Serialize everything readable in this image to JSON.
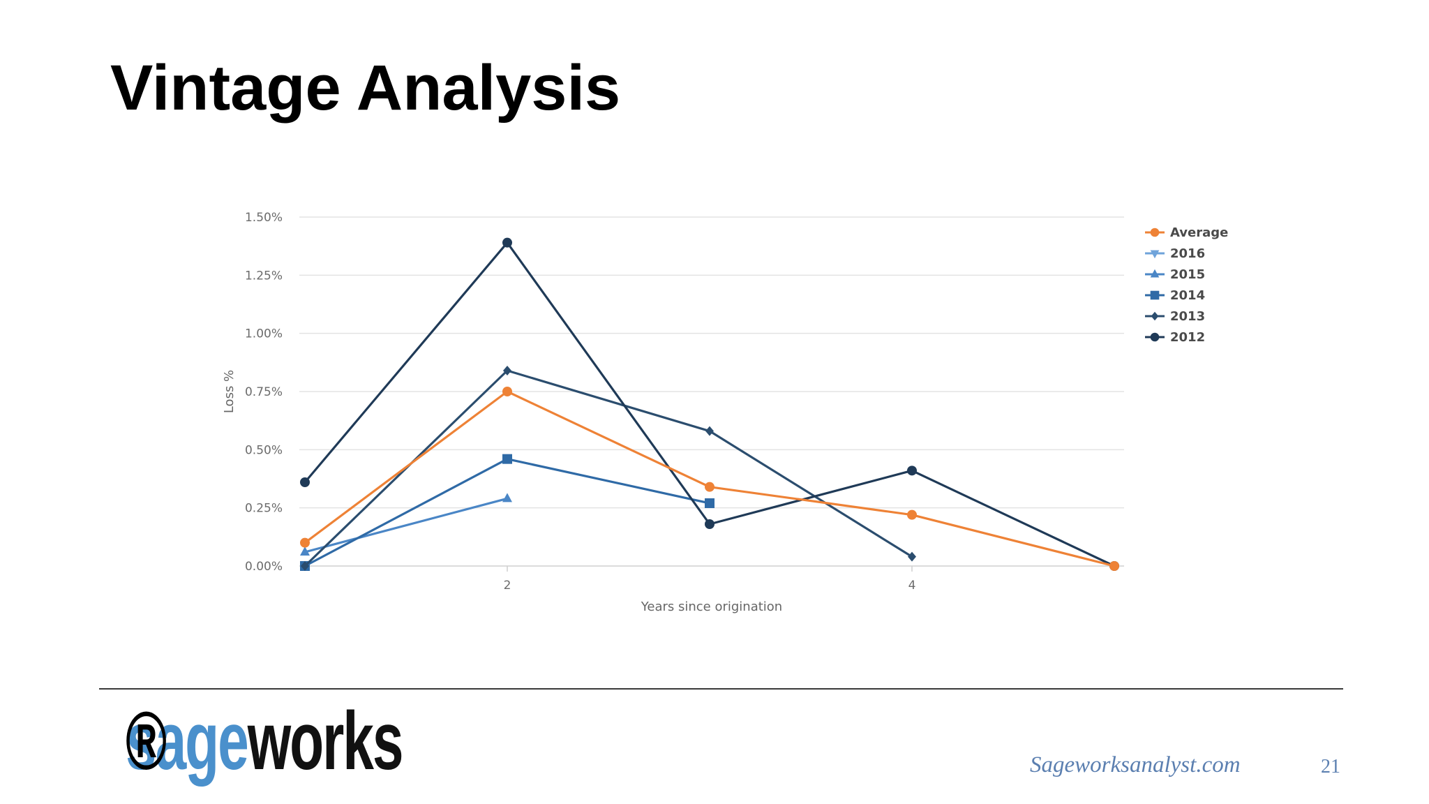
{
  "slide": {
    "title": "Vintage Analysis",
    "footer_url": "Sageworksanalyst.com",
    "page_number": "21",
    "logo": {
      "part1": "sage",
      "part2": "works",
      "registered": "®"
    }
  },
  "colors": {
    "average": "#ee8236",
    "y2016": "#6fa3da",
    "y2015": "#4a86c6",
    "y2014": "#2f6aa6",
    "y2013": "#2b4d6e",
    "y2012": "#1f3a57",
    "grid": "#e3e3e3",
    "logo_blue": "#4a90cc"
  },
  "chart_data": {
    "type": "line",
    "xlabel": "Years since origination",
    "ylabel": "Loss %",
    "xlim": [
      1,
      5
    ],
    "ylim": [
      0,
      1.5
    ],
    "x_ticks": [
      2,
      4
    ],
    "x_tick_labels": [
      "2",
      "4"
    ],
    "y_ticks": [
      0,
      0.25,
      0.5,
      0.75,
      1.0,
      1.25,
      1.5
    ],
    "y_tick_labels": [
      "0.00%",
      "0.25%",
      "0.50%",
      "0.75%",
      "1.00%",
      "1.25%",
      "1.50%"
    ],
    "grid": true,
    "legend_position": "right",
    "series": [
      {
        "name": "Average",
        "marker": "circle",
        "color": "#ee8236",
        "points": [
          [
            1,
            0.1
          ],
          [
            2,
            0.75
          ],
          [
            3,
            0.34
          ],
          [
            4,
            0.22
          ],
          [
            5,
            0.0
          ]
        ]
      },
      {
        "name": "2016",
        "marker": "triangle-down",
        "color": "#6fa3da",
        "points": []
      },
      {
        "name": "2015",
        "marker": "triangle-up",
        "color": "#4a86c6",
        "points": [
          [
            1,
            0.06
          ],
          [
            2,
            0.29
          ]
        ]
      },
      {
        "name": "2014",
        "marker": "square",
        "color": "#2f6aa6",
        "points": [
          [
            1,
            0.0
          ],
          [
            2,
            0.46
          ],
          [
            3,
            0.27
          ]
        ]
      },
      {
        "name": "2013",
        "marker": "diamond",
        "color": "#2b4d6e",
        "points": [
          [
            1,
            0.0
          ],
          [
            2,
            0.84
          ],
          [
            3,
            0.58
          ],
          [
            4,
            0.04
          ]
        ]
      },
      {
        "name": "2012",
        "marker": "circle",
        "color": "#1f3a57",
        "points": [
          [
            1,
            0.36
          ],
          [
            2,
            1.39
          ],
          [
            3,
            0.18
          ],
          [
            4,
            0.41
          ],
          [
            5,
            0.0
          ]
        ]
      }
    ]
  }
}
